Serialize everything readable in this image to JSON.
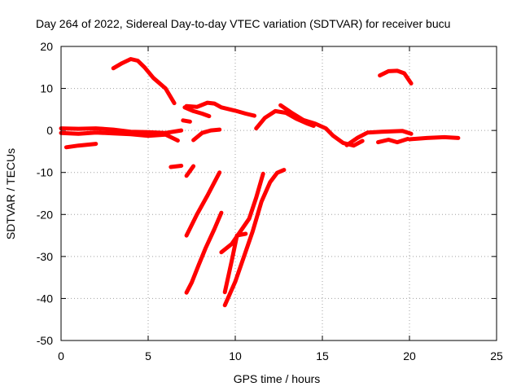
{
  "chart_data": {
    "type": "line",
    "title": "Day 264 of 2022, Sidereal Day-to-day VTEC variation (SDTVAR) for receiver bucu",
    "xlabel": "GPS time / hours",
    "ylabel": "SDTVAR / TECUs",
    "xlim": [
      0,
      25
    ],
    "ylim": [
      -50,
      20
    ],
    "xticks": [
      0,
      5,
      10,
      15,
      20,
      25
    ],
    "yticks": [
      -50,
      -40,
      -30,
      -20,
      -10,
      0,
      10,
      20
    ],
    "xtick_labels": [
      "0",
      "5",
      "10",
      "15",
      "20",
      "25"
    ],
    "ytick_labels": [
      "-50",
      "-40",
      "-30",
      "-20",
      "-10",
      "0",
      "10",
      "20"
    ],
    "grid": true,
    "color": "#ff0000",
    "series": [
      {
        "name": "s1",
        "points": [
          [
            0.0,
            0.5
          ],
          [
            1.0,
            0.4
          ],
          [
            2.0,
            0.5
          ],
          [
            3.0,
            0.2
          ],
          [
            4.0,
            -0.3
          ],
          [
            5.0,
            -0.4
          ],
          [
            6.0,
            -0.6
          ],
          [
            6.9,
            0.0
          ]
        ]
      },
      {
        "name": "s2",
        "points": [
          [
            0.0,
            -0.6
          ],
          [
            1.0,
            -0.8
          ],
          [
            2.0,
            -0.5
          ],
          [
            3.0,
            -0.7
          ],
          [
            4.0,
            -0.9
          ],
          [
            5.0,
            -1.3
          ],
          [
            6.0,
            -1.0
          ],
          [
            6.7,
            -2.4
          ]
        ]
      },
      {
        "name": "s3",
        "points": [
          [
            0.3,
            -4.0
          ],
          [
            1.0,
            -3.6
          ],
          [
            2.0,
            -3.2
          ]
        ]
      },
      {
        "name": "s4",
        "points": [
          [
            3.0,
            14.8
          ],
          [
            3.5,
            16.0
          ],
          [
            4.0,
            17.0
          ],
          [
            4.4,
            16.6
          ],
          [
            4.8,
            15.0
          ],
          [
            5.3,
            12.5
          ],
          [
            6.0,
            10.0
          ],
          [
            6.5,
            6.5
          ]
        ]
      },
      {
        "name": "s5",
        "points": [
          [
            6.3,
            -8.7
          ],
          [
            6.9,
            -8.4
          ]
        ]
      },
      {
        "name": "s6",
        "points": [
          [
            7.0,
            2.4
          ],
          [
            7.4,
            2.1
          ]
        ]
      },
      {
        "name": "s7",
        "points": [
          [
            7.2,
            -10.8
          ],
          [
            7.6,
            -8.5
          ]
        ]
      },
      {
        "name": "s8",
        "points": [
          [
            7.6,
            -2.3
          ],
          [
            8.1,
            -0.6
          ],
          [
            8.6,
            0.0
          ],
          [
            9.1,
            0.2
          ]
        ]
      },
      {
        "name": "s9",
        "points": [
          [
            7.2,
            5.8
          ],
          [
            7.8,
            5.6
          ],
          [
            8.4,
            6.6
          ],
          [
            8.8,
            6.4
          ],
          [
            9.2,
            5.5
          ],
          [
            10.0,
            4.7
          ],
          [
            10.6,
            4.0
          ],
          [
            11.1,
            3.5
          ]
        ]
      },
      {
        "name": "s10",
        "points": [
          [
            7.1,
            5.5
          ],
          [
            7.6,
            4.6
          ],
          [
            8.1,
            4.0
          ],
          [
            8.5,
            3.4
          ]
        ]
      },
      {
        "name": "s11",
        "points": [
          [
            7.2,
            -25.0
          ],
          [
            7.8,
            -20.0
          ],
          [
            8.4,
            -15.5
          ],
          [
            9.1,
            -10.0
          ]
        ]
      },
      {
        "name": "s12",
        "points": [
          [
            7.2,
            -38.6
          ],
          [
            7.5,
            -36.2
          ],
          [
            7.9,
            -32.0
          ],
          [
            8.3,
            -28.0
          ],
          [
            8.8,
            -23.5
          ],
          [
            9.2,
            -19.6
          ]
        ]
      },
      {
        "name": "s13",
        "points": [
          [
            9.4,
            -41.6
          ],
          [
            10.0,
            -36.0
          ],
          [
            10.5,
            -30.0
          ],
          [
            11.0,
            -24.0
          ],
          [
            11.5,
            -17.0
          ],
          [
            12.0,
            -12.3
          ],
          [
            12.4,
            -10.1
          ],
          [
            12.8,
            -9.4
          ]
        ]
      },
      {
        "name": "s14",
        "points": [
          [
            9.4,
            -38.5
          ],
          [
            9.8,
            -31.0
          ],
          [
            10.1,
            -25.0
          ],
          [
            10.6,
            -24.6
          ]
        ]
      },
      {
        "name": "s15",
        "points": [
          [
            9.2,
            -29.0
          ],
          [
            9.8,
            -27.0
          ],
          [
            10.3,
            -24.0
          ],
          [
            10.8,
            -21.0
          ],
          [
            11.2,
            -16.0
          ],
          [
            11.6,
            -10.3
          ]
        ]
      },
      {
        "name": "s16",
        "points": [
          [
            11.2,
            0.5
          ],
          [
            11.7,
            3.0
          ],
          [
            12.3,
            4.6
          ],
          [
            12.9,
            4.2
          ],
          [
            13.5,
            2.8
          ],
          [
            14.1,
            1.7
          ],
          [
            14.5,
            1.1
          ]
        ]
      },
      {
        "name": "s17",
        "points": [
          [
            12.6,
            6.0
          ],
          [
            13.2,
            4.3
          ],
          [
            13.9,
            2.5
          ],
          [
            14.6,
            1.6
          ],
          [
            15.2,
            0.5
          ],
          [
            15.6,
            -1.2
          ],
          [
            16.2,
            -3.0
          ],
          [
            16.8,
            -3.6
          ],
          [
            17.3,
            -2.5
          ]
        ]
      },
      {
        "name": "s18",
        "points": [
          [
            16.4,
            -3.5
          ],
          [
            17.0,
            -1.8
          ],
          [
            17.6,
            -0.5
          ],
          [
            18.4,
            -0.3
          ],
          [
            19.0,
            -0.2
          ],
          [
            19.6,
            -0.1
          ],
          [
            20.1,
            -0.8
          ]
        ]
      },
      {
        "name": "s19",
        "points": [
          [
            18.2,
            -2.8
          ],
          [
            18.8,
            -2.2
          ],
          [
            19.3,
            -2.8
          ],
          [
            19.9,
            -2.0
          ]
        ]
      },
      {
        "name": "s20",
        "points": [
          [
            18.3,
            13.1
          ],
          [
            18.8,
            14.1
          ],
          [
            19.3,
            14.2
          ],
          [
            19.7,
            13.6
          ],
          [
            20.1,
            11.2
          ]
        ]
      },
      {
        "name": "s21",
        "points": [
          [
            20.0,
            -2.1
          ],
          [
            21.0,
            -1.8
          ],
          [
            22.0,
            -1.6
          ],
          [
            22.8,
            -1.8
          ]
        ]
      }
    ]
  }
}
